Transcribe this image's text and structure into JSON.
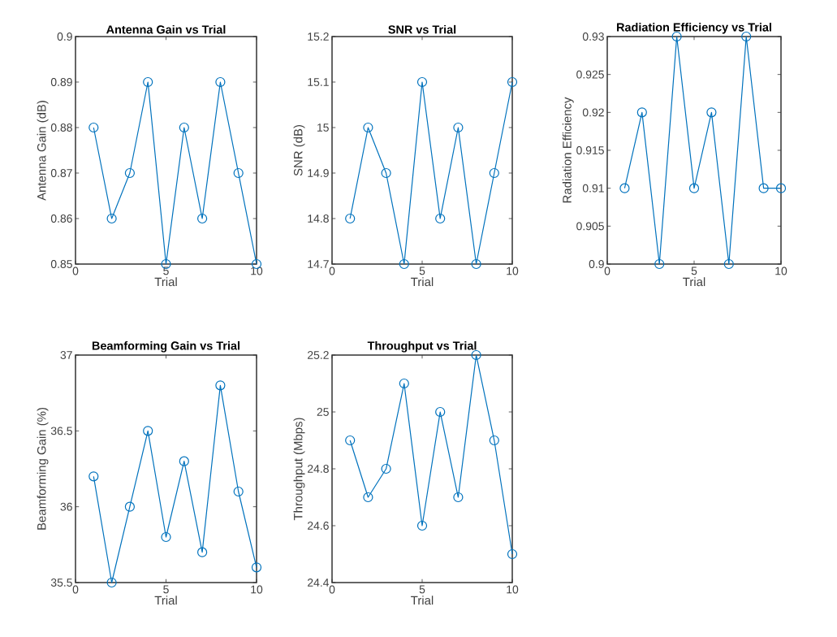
{
  "chart_data": [
    {
      "type": "line",
      "title": "Antenna Gain vs Trial",
      "xlabel": "Trial",
      "ylabel": "Antenna Gain (dB)",
      "x": [
        1,
        2,
        3,
        4,
        5,
        6,
        7,
        8,
        9,
        10
      ],
      "values": [
        0.88,
        0.86,
        0.87,
        0.89,
        0.85,
        0.88,
        0.86,
        0.89,
        0.87,
        0.85
      ],
      "color": "#0072bd",
      "marker": "circle",
      "xlim": [
        0,
        10
      ],
      "xticks": [
        0,
        5,
        10
      ],
      "ylim": [
        0.85,
        0.9
      ],
      "yticks": [
        0.85,
        0.86,
        0.87,
        0.88,
        0.89,
        0.9
      ]
    },
    {
      "type": "line",
      "title": "SNR vs Trial",
      "xlabel": "Trial",
      "ylabel": "SNR (dB)",
      "x": [
        1,
        2,
        3,
        4,
        5,
        6,
        7,
        8,
        9,
        10
      ],
      "values": [
        14.8,
        15.0,
        14.9,
        14.7,
        15.1,
        14.8,
        15.0,
        14.7,
        14.9,
        15.1
      ],
      "color": "#0072bd",
      "marker": "circle",
      "xlim": [
        0,
        10
      ],
      "xticks": [
        0,
        5,
        10
      ],
      "ylim": [
        14.7,
        15.2
      ],
      "yticks": [
        14.7,
        14.8,
        14.9,
        15,
        15.1,
        15.2
      ]
    },
    {
      "type": "line",
      "title": "Radiation Efficiency vs Trial",
      "xlabel": "Trial",
      "ylabel": "Radiation Efficiency",
      "x": [
        1,
        2,
        3,
        4,
        5,
        6,
        7,
        8,
        9,
        10
      ],
      "values": [
        0.91,
        0.92,
        0.9,
        0.93,
        0.91,
        0.92,
        0.9,
        0.93,
        0.91,
        0.91
      ],
      "color": "#0072bd",
      "marker": "circle",
      "xlim": [
        0,
        10
      ],
      "xticks": [
        0,
        5,
        10
      ],
      "ylim": [
        0.9,
        0.93
      ],
      "yticks": [
        0.9,
        0.905,
        0.91,
        0.915,
        0.92,
        0.925,
        0.93
      ]
    },
    {
      "type": "line",
      "title": "Beamforming Gain vs Trial",
      "xlabel": "Trial",
      "ylabel": "Beamforming Gain (%)",
      "x": [
        1,
        2,
        3,
        4,
        5,
        6,
        7,
        8,
        9,
        10
      ],
      "values": [
        36.2,
        35.5,
        36.0,
        36.5,
        35.8,
        36.3,
        35.7,
        36.8,
        36.1,
        35.6
      ],
      "color": "#0072bd",
      "marker": "circle",
      "xlim": [
        0,
        10
      ],
      "xticks": [
        0,
        5,
        10
      ],
      "ylim": [
        35.5,
        37
      ],
      "yticks": [
        35.5,
        36,
        36.5,
        37
      ]
    },
    {
      "type": "line",
      "title": "Throughput vs Trial",
      "xlabel": "Trial",
      "ylabel": "Throughput (Mbps)",
      "x": [
        1,
        2,
        3,
        4,
        5,
        6,
        7,
        8,
        9,
        10
      ],
      "values": [
        24.9,
        24.7,
        24.8,
        25.1,
        24.6,
        25.0,
        24.7,
        25.2,
        24.9,
        24.5
      ],
      "color": "#0072bd",
      "marker": "circle",
      "xlim": [
        0,
        10
      ],
      "xticks": [
        0,
        5,
        10
      ],
      "ylim": [
        24.4,
        25.2
      ],
      "yticks": [
        24.4,
        24.6,
        24.8,
        25,
        25.2
      ]
    }
  ]
}
